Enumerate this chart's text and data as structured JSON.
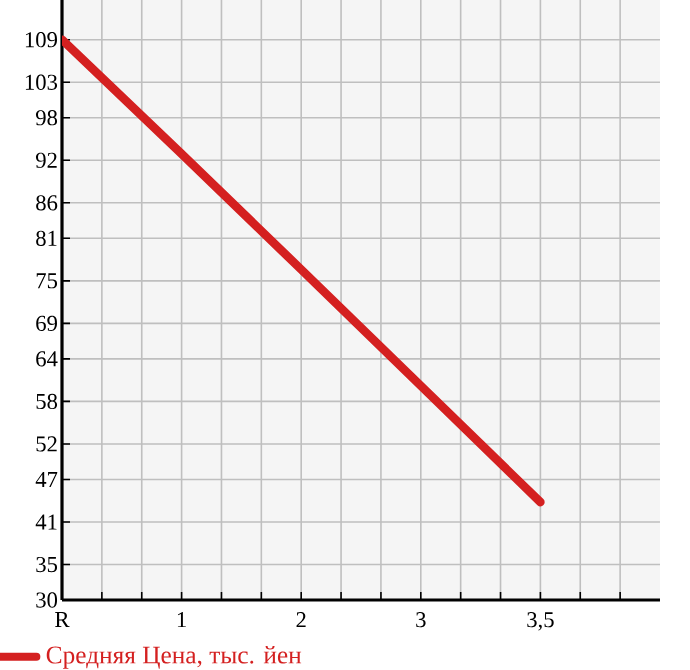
{
  "chart_data": {
    "type": "line",
    "categories": [
      "R",
      "1",
      "2",
      "3",
      "3,5"
    ],
    "series": [
      {
        "name": "Средняя Цена, тыс. йен",
        "color": "#d42020",
        "values": [
          109,
          92.9,
          76.6,
          60.2,
          43.8
        ]
      }
    ],
    "ylim": [
      30,
      114.6
    ],
    "yticks": [
      30,
      35,
      41,
      47,
      52,
      58,
      64,
      69,
      75,
      81,
      86,
      92,
      98,
      103,
      109
    ],
    "grid": true,
    "legend": "bottom left",
    "marker": "none",
    "line_style": "solid"
  }
}
